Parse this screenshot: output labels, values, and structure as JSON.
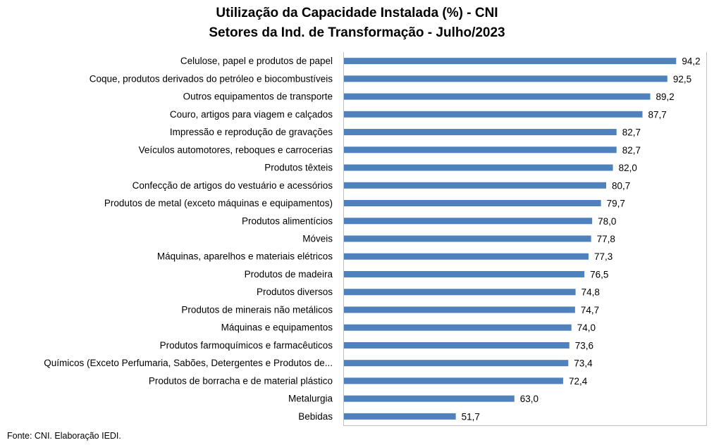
{
  "chart_data": {
    "type": "bar",
    "orientation": "horizontal",
    "title": "Utilização da Capacidade Instalada (%) - CNI",
    "subtitle": "Setores da Ind. de Transformação - Julho/2023",
    "categories": [
      "Celulose, papel e produtos de papel",
      "Coque, produtos derivados do petróleo e biocombustíveis",
      "Outros equipamentos de transporte",
      "Couro, artigos para viagem e calçados",
      "Impressão e reprodução de gravações",
      "Veículos automotores, reboques e carrocerias",
      "Produtos têxteis",
      "Confecção de artigos do vestuário e acessórios",
      "Produtos de metal (exceto máquinas e equipamentos)",
      "Produtos alimentícios",
      "Móveis",
      "Máquinas, aparelhos e materiais elétricos",
      "Produtos de madeira",
      "Produtos diversos",
      "Produtos de minerais não metálicos",
      "Máquinas e equipamentos",
      "Produtos farmoquímicos e farmacêuticos",
      "Químicos (Exceto Perfumaria, Sabões, Detergentes e Produtos de...",
      "Produtos de borracha e de material plástico",
      "Metalurgia",
      "Bebidas"
    ],
    "values": [
      94.2,
      92.5,
      89.2,
      87.7,
      82.7,
      82.7,
      82.0,
      80.7,
      79.7,
      78.0,
      77.8,
      77.3,
      76.5,
      74.8,
      74.7,
      74.0,
      73.6,
      73.4,
      72.4,
      63.0,
      51.7
    ],
    "value_labels": [
      "94,2",
      "92,5",
      "89,2",
      "87,7",
      "82,7",
      "82,7",
      "82,0",
      "80,7",
      "79,7",
      "78,0",
      "77,8",
      "77,3",
      "76,5",
      "74,8",
      "74,7",
      "74,0",
      "73,6",
      "73,4",
      "72,4",
      "63,0",
      "51,7"
    ],
    "xlim": [
      30,
      100
    ],
    "bar_color": "#4f81bd",
    "grid": false,
    "legend": "none"
  },
  "source": "Fonte: CNI. Elaboração IEDI."
}
